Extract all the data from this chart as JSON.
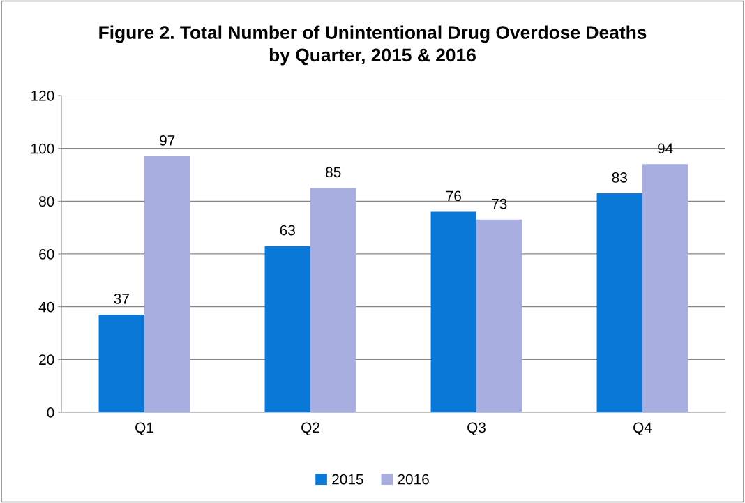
{
  "chart_data": {
    "type": "bar",
    "title": "Figure 2. Total Number of Unintentional Drug Overdose Deaths\nby Quarter, 2015 & 2016",
    "categories": [
      "Q1",
      "Q2",
      "Q3",
      "Q4"
    ],
    "series": [
      {
        "name": "2015",
        "color": "#0a78d6",
        "values": [
          37,
          63,
          76,
          83
        ]
      },
      {
        "name": "2016",
        "color": "#a9aee0",
        "values": [
          97,
          85,
          73,
          94
        ]
      }
    ],
    "ylim": [
      0,
      120
    ],
    "yticks": [
      0,
      20,
      40,
      60,
      80,
      100,
      120
    ],
    "grid": "y",
    "legend": "bottom",
    "data_labels": true
  }
}
